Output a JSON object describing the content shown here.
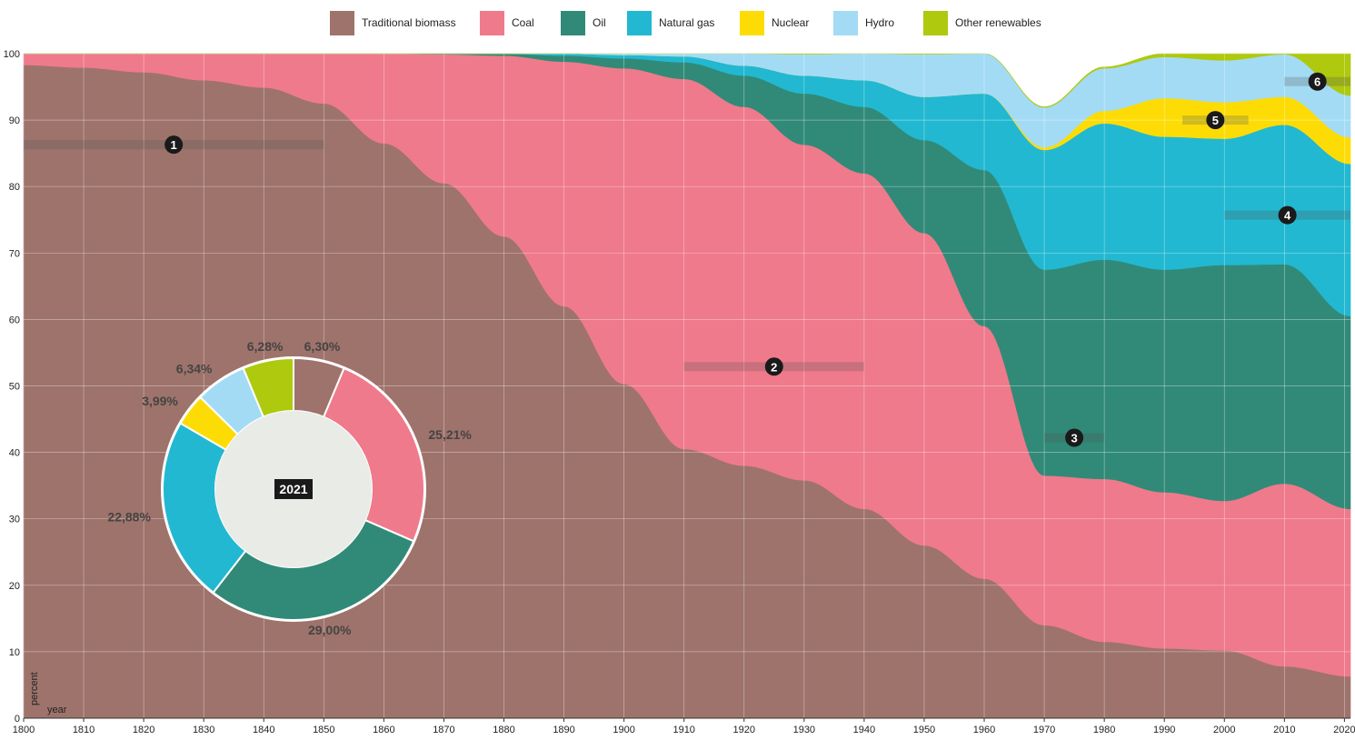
{
  "chart_data": {
    "type": "area",
    "stacked": true,
    "xlabel": "year",
    "ylabel": "percent",
    "xlim": [
      1800,
      2021
    ],
    "ylim": [
      0,
      100
    ],
    "grid": true,
    "legend_placement": "top",
    "x": [
      1800,
      1810,
      1820,
      1830,
      1840,
      1850,
      1860,
      1870,
      1880,
      1890,
      1900,
      1910,
      1920,
      1930,
      1940,
      1950,
      1960,
      1970,
      1980,
      1990,
      2000,
      2010,
      2021
    ],
    "series": [
      {
        "name": "Traditional biomass",
        "color": "#9e736b",
        "values": [
          98.3,
          97.9,
          97.2,
          96.0,
          94.9,
          92.5,
          86.5,
          80.5,
          72.5,
          62.0,
          50.3,
          40.5,
          38.0,
          35.8,
          31.5,
          26.0,
          21.0,
          14.0,
          11.5,
          10.5,
          10.2,
          7.8,
          6.3
        ]
      },
      {
        "name": "Coal",
        "color": "#ef7a8b",
        "values": [
          1.7,
          2.1,
          2.8,
          4.0,
          5.1,
          7.5,
          13.5,
          19.4,
          27.2,
          36.8,
          47.5,
          55.7,
          54.0,
          50.5,
          50.5,
          47.0,
          38.0,
          22.5,
          24.5,
          23.5,
          22.5,
          27.5,
          25.2
        ]
      },
      {
        "name": "Oil",
        "color": "#318a78",
        "values": [
          0,
          0,
          0,
          0,
          0,
          0,
          0,
          0.1,
          0.3,
          0.9,
          1.5,
          2.5,
          4.7,
          7.7,
          10.0,
          14.0,
          23.5,
          31.0,
          33.0,
          33.5,
          35.5,
          33.0,
          29.0
        ]
      },
      {
        "name": "Natural gas",
        "color": "#22b8d1",
        "values": [
          0,
          0,
          0,
          0,
          0,
          0,
          0,
          0,
          0,
          0.3,
          0.5,
          0.9,
          1.5,
          2.7,
          4.0,
          6.5,
          11.5,
          18.0,
          20.5,
          20.0,
          19.0,
          21.0,
          22.9
        ]
      },
      {
        "name": "Nuclear",
        "color": "#fddc06",
        "values": [
          0,
          0,
          0,
          0,
          0,
          0,
          0,
          0,
          0,
          0,
          0,
          0,
          0,
          0,
          0,
          0,
          0,
          0.4,
          1.9,
          5.8,
          5.5,
          4.2,
          4.0
        ]
      },
      {
        "name": "Hydro",
        "color": "#a3dbf5",
        "values": [
          0,
          0,
          0,
          0,
          0,
          0,
          0,
          0,
          0,
          0,
          0.2,
          0.4,
          1.8,
          3.2,
          4.0,
          6.4,
          6.0,
          6.0,
          6.4,
          6.2,
          6.3,
          6.4,
          6.3
        ]
      },
      {
        "name": "Other renewables",
        "color": "#aec90e",
        "values": [
          0,
          0,
          0,
          0,
          0,
          0,
          0,
          0,
          0,
          0,
          0,
          0,
          0,
          0.1,
          0,
          0.1,
          0,
          0.1,
          0.2,
          0.5,
          1.0,
          2.1,
          6.3
        ]
      }
    ],
    "x_ticks": [
      1800,
      1810,
      1820,
      1830,
      1840,
      1850,
      1860,
      1870,
      1880,
      1890,
      1900,
      1910,
      1920,
      1930,
      1940,
      1950,
      1960,
      1970,
      1980,
      1990,
      2000,
      2010,
      2020
    ],
    "y_ticks": [
      0,
      10,
      20,
      30,
      40,
      50,
      60,
      70,
      80,
      90,
      100
    ],
    "markers": [
      {
        "label": "1",
        "series": "Traditional biomass",
        "x0": 1800,
        "x1": 1850,
        "y": 86.3
      },
      {
        "label": "2",
        "series": "Coal",
        "x0": 1910,
        "x1": 1940,
        "y": 52.9
      },
      {
        "label": "3",
        "series": "Oil",
        "x0": 1970,
        "x1": 1980,
        "y": 42.2
      },
      {
        "label": "4",
        "series": "Natural gas",
        "x0": 2000,
        "x1": 2021,
        "y": 75.7
      },
      {
        "label": "5",
        "series": "Nuclear",
        "x0": 1993,
        "x1": 2004,
        "y": 90.0
      },
      {
        "label": "6",
        "series": "Hydro",
        "x0": 2010,
        "x1": 2021,
        "y": 95.8
      }
    ],
    "inset_donut": {
      "type": "pie",
      "center_label": "2021",
      "slices": [
        {
          "series": "Traditional biomass",
          "value": 6.3,
          "label": "6,30%"
        },
        {
          "series": "Coal",
          "value": 25.21,
          "label": "25,21%"
        },
        {
          "series": "Oil",
          "value": 29.0,
          "label": "29,00%"
        },
        {
          "series": "Natural gas",
          "value": 22.88,
          "label": "22,88%"
        },
        {
          "series": "Nuclear",
          "value": 3.99,
          "label": "3,99%"
        },
        {
          "series": "Hydro",
          "value": 6.34,
          "label": "6,34%"
        },
        {
          "series": "Other renewables",
          "value": 6.28,
          "label": "6,28%"
        }
      ]
    }
  }
}
